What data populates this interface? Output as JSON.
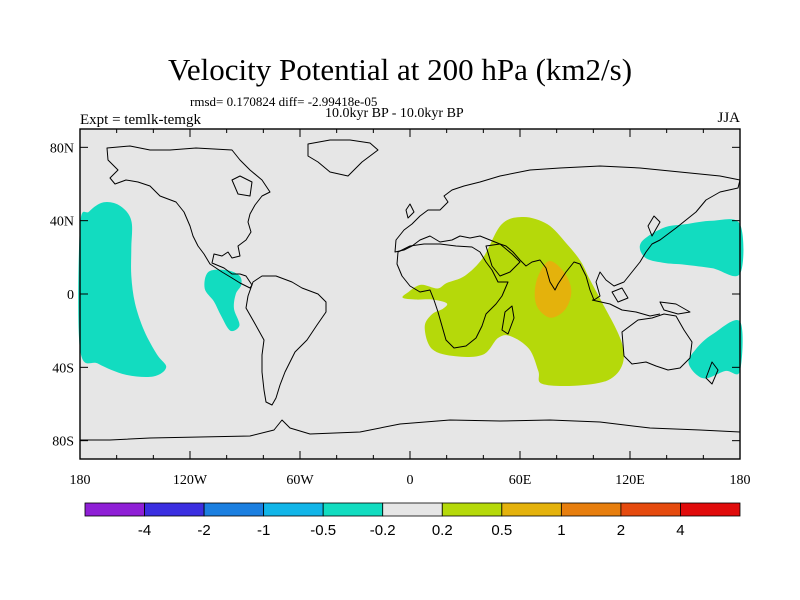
{
  "chart_data": {
    "type": "heatmap",
    "title": "Velocity Potential at 200 hPa (km2/s)",
    "subtitle": "rmsd= 0.170824 diff= -2.99418e-05",
    "period_label": "10.0kyr BP - 10.0kyr BP",
    "experiment_label": "Expt = temlk-temgk",
    "season_label": "JJA",
    "projection": "cylindrical equidistant",
    "lon_range": [
      -180,
      180
    ],
    "lat_range": [
      -90,
      90
    ],
    "lat_ticks": [
      {
        "value": 80,
        "label": "80N"
      },
      {
        "value": 40,
        "label": "40N"
      },
      {
        "value": 0,
        "label": "0"
      },
      {
        "value": -40,
        "label": "40S"
      },
      {
        "value": -80,
        "label": "80S"
      }
    ],
    "lon_ticks": [
      {
        "value": -180,
        "label": "180"
      },
      {
        "value": -120,
        "label": "120W"
      },
      {
        "value": -60,
        "label": "60W"
      },
      {
        "value": 0,
        "label": "0"
      },
      {
        "value": 60,
        "label": "60E"
      },
      {
        "value": 120,
        "label": "120E"
      },
      {
        "value": 180,
        "label": "180"
      }
    ],
    "colorbar": {
      "colors": [
        "#8f1fd6",
        "#3b2ee0",
        "#1b7fe0",
        "#11b5e8",
        "#12dcc0",
        "#e6e6e6",
        "#b5d90a",
        "#e4b20c",
        "#e77e0e",
        "#e54a0e",
        "#e00b0b"
      ],
      "labels": [
        "-4",
        "-2",
        "-1",
        "-0.5",
        "-0.2",
        "0.2",
        "0.5",
        "1",
        "2",
        "4"
      ]
    },
    "regions": [
      {
        "name": "central-pacific-negative",
        "level": "-0.5 to -0.2",
        "color": "#12dcc0",
        "outline": [
          [
            -180,
            37
          ],
          [
            -175,
            45
          ],
          [
            -167,
            50
          ],
          [
            -158,
            48
          ],
          [
            -152,
            40
          ],
          [
            -152,
            25
          ],
          [
            -152,
            10
          ],
          [
            -150,
            -5
          ],
          [
            -145,
            -20
          ],
          [
            -138,
            -33
          ],
          [
            -133,
            -40
          ],
          [
            -140,
            -45
          ],
          [
            -155,
            -44
          ],
          [
            -170,
            -38
          ],
          [
            -180,
            -30
          ]
        ]
      },
      {
        "name": "east-pacific-negative",
        "level": "-0.5 to -0.2",
        "color": "#12dcc0",
        "outline": [
          [
            -110,
            12
          ],
          [
            -100,
            13
          ],
          [
            -93,
            10
          ],
          [
            -92,
            5
          ],
          [
            -95,
            0
          ],
          [
            -96,
            -8
          ],
          [
            -93,
            -17
          ],
          [
            -98,
            -20
          ],
          [
            -103,
            -12
          ],
          [
            -107,
            -4
          ],
          [
            -112,
            3
          ]
        ]
      },
      {
        "name": "west-pacific-negative",
        "level": "-0.5 to -0.2",
        "color": "#12dcc0",
        "outline": [
          [
            126,
            28
          ],
          [
            138,
            36
          ],
          [
            150,
            38
          ],
          [
            165,
            40
          ],
          [
            180,
            38
          ],
          [
            180,
            11
          ],
          [
            165,
            14
          ],
          [
            150,
            16
          ],
          [
            138,
            17
          ],
          [
            128,
            20
          ]
        ]
      },
      {
        "name": "southwest-pacific-negative",
        "level": "-0.5 to -0.2",
        "color": "#12dcc0",
        "outline": [
          [
            180,
            -15
          ],
          [
            165,
            -22
          ],
          [
            156,
            -30
          ],
          [
            152,
            -38
          ],
          [
            160,
            -46
          ],
          [
            172,
            -42
          ],
          [
            180,
            -42
          ]
        ]
      },
      {
        "name": "africa-indian-ocean-positive",
        "level": "0.2 to 0.5",
        "color": "#b5d90a",
        "outline": [
          [
            -1,
            1
          ],
          [
            6,
            5
          ],
          [
            15,
            3
          ],
          [
            20,
            6
          ],
          [
            30,
            10
          ],
          [
            40,
            20
          ],
          [
            50,
            38
          ],
          [
            62,
            42
          ],
          [
            75,
            38
          ],
          [
            85,
            28
          ],
          [
            93,
            18
          ],
          [
            98,
            8
          ],
          [
            105,
            -5
          ],
          [
            115,
            -25
          ],
          [
            116,
            -38
          ],
          [
            108,
            -47
          ],
          [
            90,
            -50
          ],
          [
            72,
            -49
          ],
          [
            70,
            -42
          ],
          [
            65,
            -30
          ],
          [
            55,
            -23
          ],
          [
            48,
            -24
          ],
          [
            40,
            -33
          ],
          [
            25,
            -34
          ],
          [
            12,
            -30
          ],
          [
            8,
            -18
          ],
          [
            12,
            -11
          ],
          [
            18,
            -8
          ],
          [
            20,
            -5
          ],
          [
            12,
            -3
          ],
          [
            3,
            -3
          ],
          [
            -4,
            -2
          ]
        ]
      },
      {
        "name": "india-positive-max",
        "level": "0.5 to 1",
        "color": "#e4b20c",
        "outline": [
          [
            70,
            10
          ],
          [
            76,
            18
          ],
          [
            84,
            12
          ],
          [
            88,
            2
          ],
          [
            85,
            -8
          ],
          [
            77,
            -13
          ],
          [
            70,
            -8
          ],
          [
            68,
            0
          ]
        ]
      }
    ]
  }
}
